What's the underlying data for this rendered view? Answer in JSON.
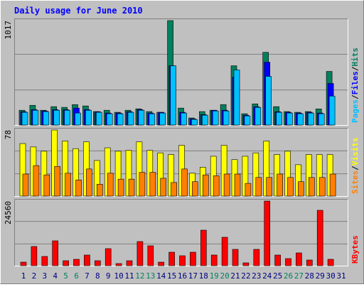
{
  "chart_data": {
    "type": "bar",
    "title": "Daily usage for June 2010",
    "categories": [
      "1",
      "2",
      "3",
      "4",
      "5",
      "6",
      "7",
      "8",
      "9",
      "10",
      "11",
      "12",
      "13",
      "14",
      "15",
      "16",
      "17",
      "18",
      "19",
      "20",
      "21",
      "22",
      "23",
      "24",
      "25",
      "26",
      "27",
      "28",
      "29",
      "30",
      "31"
    ],
    "category_colors": [
      "#000080",
      "#000080",
      "#000080",
      "#000080",
      "#00805c",
      "#00805c",
      "#000080",
      "#000080",
      "#000080",
      "#000080",
      "#000080",
      "#00805c",
      "#00805c",
      "#000080",
      "#000080",
      "#000080",
      "#000080",
      "#000080",
      "#00805c",
      "#00805c",
      "#000080",
      "#000080",
      "#000080",
      "#000080",
      "#000080",
      "#00805c",
      "#00805c",
      "#000080",
      "#000080",
      "#000080",
      "#000080"
    ],
    "legend_separator": "/",
    "panels": [
      {
        "ylim": [
          0,
          1017
        ],
        "yticks": [
          1017
        ],
        "series": [
          {
            "name": "Hits",
            "color": "#00805c",
            "values": [
              144,
              192,
              144,
              179,
              172,
              199,
              186,
              131,
              144,
              124,
              144,
              158,
              131,
              124,
              1017,
              165,
              69,
              131,
              144,
              199,
              577,
              110,
              206,
              708,
              179,
              131,
              124,
              131,
              157,
              522,
              0
            ]
          },
          {
            "name": "Files",
            "color": "#0000ff",
            "values": [
              130,
              150,
              137,
              150,
              150,
              165,
              150,
              130,
              117,
              117,
              130,
              150,
              117,
              124,
              577,
              124,
              60,
              102,
              144,
              144,
              467,
              96,
              178,
              612,
              130,
              124,
              117,
              124,
              117,
              405,
              0
            ]
          },
          {
            "name": "Pages",
            "color": "#00c0ff",
            "values": [
              124,
              144,
              131,
              144,
              144,
              117,
              144,
              124,
              110,
              110,
              124,
              144,
              110,
              117,
              577,
              117,
              55,
              96,
              137,
              137,
              536,
              89,
              172,
              474,
              124,
              117,
              110,
              117,
              110,
              282,
              0
            ]
          }
        ]
      },
      {
        "ylim": [
          0,
          78
        ],
        "yticks": [
          78
        ],
        "series": [
          {
            "name": "Visits",
            "color": "#ffff00",
            "values": [
              62,
              58,
              53,
              78,
              65,
              56,
              64,
              42,
              57,
              53,
              54,
              64,
              54,
              51,
              49,
              60,
              27,
              34,
              47,
              60,
              43,
              47,
              51,
              65,
              49,
              53,
              37,
              49,
              49,
              49,
              0
            ]
          },
          {
            "name": "Sites",
            "color": "#ff8000",
            "values": [
              26,
              36,
              25,
              35,
              27,
              19,
              32,
              14,
              27,
              20,
              20,
              28,
              28,
              21,
              16,
              32,
              17,
              25,
              24,
              26,
              26,
              15,
              22,
              22,
              26,
              22,
              17,
              22,
              22,
              26,
              0
            ]
          }
        ]
      },
      {
        "ylim": [
          0,
          24560
        ],
        "yticks": [
          24560
        ],
        "series": [
          {
            "name": "KBytes",
            "color": "#ff0000",
            "values": [
              1349,
              7287,
              3509,
              9447,
              1889,
              2429,
              4049,
              1889,
              6478,
              810,
              1889,
              9177,
              7557,
              1349,
              5128,
              3779,
              5128,
              13495,
              4049,
              10796,
              6208,
              1080,
              6208,
              24560,
              4049,
              2699,
              4859,
              2159,
              21052,
              2429,
              0
            ]
          }
        ]
      }
    ]
  }
}
